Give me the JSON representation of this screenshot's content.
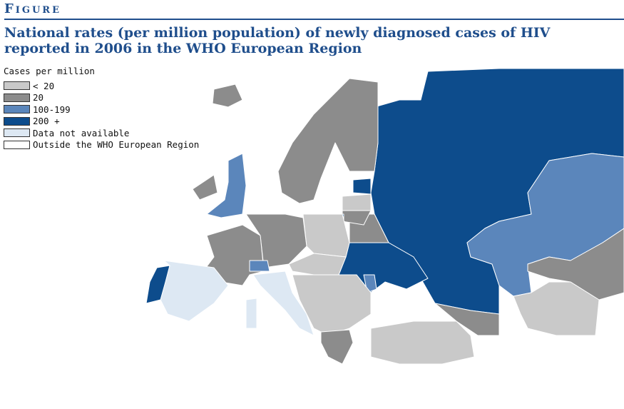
{
  "header": {
    "label": "Figure",
    "title": "National rates (per million population) of newly diagnosed cases of HIV reported in 2006 in the WHO European Region"
  },
  "legend": {
    "title": "Cases per million",
    "items": [
      {
        "label": "< 20",
        "color": "#c9c9c9"
      },
      {
        "label": "20",
        "color": "#8c8c8c"
      },
      {
        "label": "100-199",
        "color": "#5b86bb"
      },
      {
        "label": "200 +",
        "color": "#0d4c8c"
      },
      {
        "label": "Data not available",
        "color": "#dde8f3"
      },
      {
        "label": "Outside the WHO European Region",
        "color": "#ffffff"
      }
    ]
  }
}
